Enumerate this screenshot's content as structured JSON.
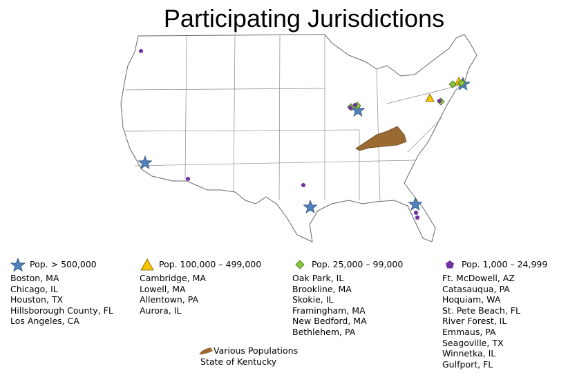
{
  "title": "Participating Jurisdictions",
  "legend": [
    {
      "label": "Pop. > 500,000",
      "items": [
        "Boston, MA",
        "Chicago, IL",
        "Houston, TX",
        "Hillsborough County, FL",
        "Los Angeles, CA"
      ]
    },
    {
      "label": "Pop. 100,000 – 499,000",
      "items": [
        "Cambridge, MA",
        "Lowell, MA",
        "Allentown, PA",
        "Aurora, IL"
      ]
    },
    {
      "label": "Pop. 25,000 – 99,000",
      "items": [
        "Oak Park, IL",
        "Brookline, MA",
        "Skokie, IL",
        "Framingham, MA",
        "New Bedford, MA",
        "Bethlehem, PA"
      ]
    },
    {
      "label": "Pop. 1,000 – 24,999",
      "items": [
        "Ft. McDowell, AZ",
        "Catasauqua, PA",
        "Hoquiam, WA",
        "St. Pete Beach, FL",
        "River Forest, IL",
        "Emmaus, PA",
        "Seagoville, TX",
        "Winnetka, IL",
        "Gulfport, FL"
      ]
    }
  ],
  "other": {
    "label": "Various Populations",
    "items": [
      "State of Kentucky"
    ]
  }
}
